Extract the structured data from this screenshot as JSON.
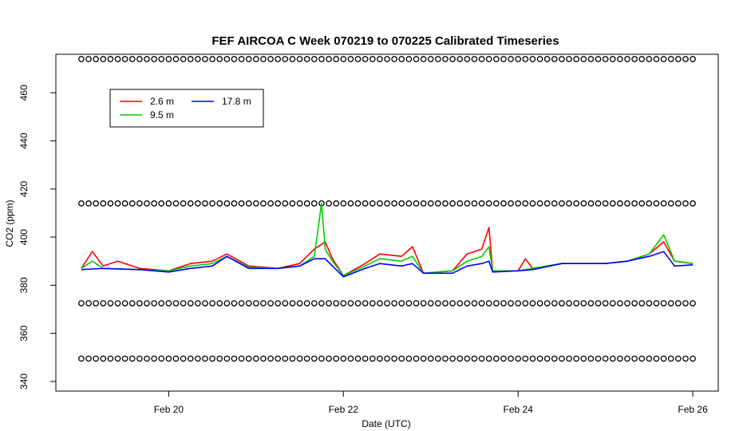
{
  "chart_data": {
    "type": "line",
    "title": "FEF AIRCOA C  Week 070219 to 070225  Calibrated Timeseries",
    "xlabel": "Date (UTC)",
    "ylabel": "CO2 (ppm)",
    "xlim": [
      "2007-02-18T17:00:00Z",
      "2007-02-26T07:00:00Z"
    ],
    "ylim": [
      336,
      476
    ],
    "x_ticks": [
      {
        "label": "Feb 20",
        "value": "2007-02-20T00:00:00Z"
      },
      {
        "label": "Feb 22",
        "value": "2007-02-22T00:00:00Z"
      },
      {
        "label": "Feb 24",
        "value": "2007-02-24T00:00:00Z"
      },
      {
        "label": "Feb 26",
        "value": "2007-02-26T00:00:00Z"
      }
    ],
    "y_ticks": [
      340,
      360,
      380,
      400,
      420,
      440,
      460
    ],
    "grid": false,
    "legend_position": "top-left",
    "series": [
      {
        "name": "2.6 m",
        "color": "#ff0000",
        "points": [
          [
            "2007-02-19T00:00:00Z",
            387.0
          ],
          [
            "2007-02-19T03:00:00Z",
            394.0
          ],
          [
            "2007-02-19T06:00:00Z",
            388.0
          ],
          [
            "2007-02-19T10:00:00Z",
            390.0
          ],
          [
            "2007-02-19T16:00:00Z",
            387.0
          ],
          [
            "2007-02-20T00:00:00Z",
            386.0
          ],
          [
            "2007-02-20T06:00:00Z",
            389.0
          ],
          [
            "2007-02-20T12:00:00Z",
            390.0
          ],
          [
            "2007-02-20T16:00:00Z",
            393.0
          ],
          [
            "2007-02-20T22:00:00Z",
            388.0
          ],
          [
            "2007-02-21T06:00:00Z",
            387.0
          ],
          [
            "2007-02-21T12:00:00Z",
            389.0
          ],
          [
            "2007-02-21T16:00:00Z",
            395.0
          ],
          [
            "2007-02-21T19:00:00Z",
            398.0
          ],
          [
            "2007-02-21T21:00:00Z",
            391.0
          ],
          [
            "2007-02-22T00:00:00Z",
            384.0
          ],
          [
            "2007-02-22T06:00:00Z",
            389.0
          ],
          [
            "2007-02-22T10:00:00Z",
            393.0
          ],
          [
            "2007-02-22T16:00:00Z",
            392.0
          ],
          [
            "2007-02-22T19:00:00Z",
            396.0
          ],
          [
            "2007-02-22T22:00:00Z",
            385.0
          ],
          [
            "2007-02-23T06:00:00Z",
            386.0
          ],
          [
            "2007-02-23T10:00:00Z",
            393.0
          ],
          [
            "2007-02-23T14:00:00Z",
            395.0
          ],
          [
            "2007-02-23T16:00:00Z",
            404.0
          ],
          [
            "2007-02-23T17:00:00Z",
            386.0
          ],
          [
            "2007-02-24T00:00:00Z",
            386.0
          ],
          [
            "2007-02-24T02:00:00Z",
            391.0
          ],
          [
            "2007-02-24T04:00:00Z",
            387.0
          ],
          [
            "2007-02-24T12:00:00Z",
            389.0
          ],
          [
            "2007-02-25T00:00:00Z",
            389.0
          ],
          [
            "2007-02-25T06:00:00Z",
            390.0
          ],
          [
            "2007-02-25T12:00:00Z",
            393.0
          ],
          [
            "2007-02-25T16:00:00Z",
            398.0
          ],
          [
            "2007-02-25T19:00:00Z",
            390.0
          ],
          [
            "2007-02-26T00:00:00Z",
            389.0
          ]
        ]
      },
      {
        "name": "9.5 m",
        "color": "#00cc00",
        "points": [
          [
            "2007-02-19T00:00:00Z",
            387.0
          ],
          [
            "2007-02-19T03:00:00Z",
            390.0
          ],
          [
            "2007-02-19T06:00:00Z",
            387.0
          ],
          [
            "2007-02-19T16:00:00Z",
            386.5
          ],
          [
            "2007-02-20T00:00:00Z",
            386.0
          ],
          [
            "2007-02-20T06:00:00Z",
            388.0
          ],
          [
            "2007-02-20T12:00:00Z",
            389.0
          ],
          [
            "2007-02-20T16:00:00Z",
            392.0
          ],
          [
            "2007-02-20T22:00:00Z",
            387.5
          ],
          [
            "2007-02-21T06:00:00Z",
            387.0
          ],
          [
            "2007-02-21T12:00:00Z",
            388.0
          ],
          [
            "2007-02-21T16:00:00Z",
            392.0
          ],
          [
            "2007-02-21T18:00:00Z",
            414.0
          ],
          [
            "2007-02-21T19:00:00Z",
            395.0
          ],
          [
            "2007-02-21T21:00:00Z",
            390.0
          ],
          [
            "2007-02-22T00:00:00Z",
            384.0
          ],
          [
            "2007-02-22T06:00:00Z",
            388.0
          ],
          [
            "2007-02-22T10:00:00Z",
            391.0
          ],
          [
            "2007-02-22T16:00:00Z",
            390.0
          ],
          [
            "2007-02-22T19:00:00Z",
            392.0
          ],
          [
            "2007-02-22T22:00:00Z",
            385.0
          ],
          [
            "2007-02-23T06:00:00Z",
            386.0
          ],
          [
            "2007-02-23T10:00:00Z",
            390.0
          ],
          [
            "2007-02-23T14:00:00Z",
            392.0
          ],
          [
            "2007-02-23T16:00:00Z",
            396.0
          ],
          [
            "2007-02-23T17:00:00Z",
            386.0
          ],
          [
            "2007-02-24T00:00:00Z",
            386.0
          ],
          [
            "2007-02-24T04:00:00Z",
            387.0
          ],
          [
            "2007-02-24T12:00:00Z",
            389.0
          ],
          [
            "2007-02-25T00:00:00Z",
            389.0
          ],
          [
            "2007-02-25T06:00:00Z",
            390.0
          ],
          [
            "2007-02-25T12:00:00Z",
            393.0
          ],
          [
            "2007-02-25T16:00:00Z",
            401.0
          ],
          [
            "2007-02-25T19:00:00Z",
            390.0
          ],
          [
            "2007-02-26T00:00:00Z",
            389.0
          ]
        ]
      },
      {
        "name": "17.8 m",
        "color": "#0000ff",
        "points": [
          [
            "2007-02-19T00:00:00Z",
            386.5
          ],
          [
            "2007-02-19T06:00:00Z",
            387.0
          ],
          [
            "2007-02-19T16:00:00Z",
            386.5
          ],
          [
            "2007-02-20T00:00:00Z",
            385.5
          ],
          [
            "2007-02-20T06:00:00Z",
            387.0
          ],
          [
            "2007-02-20T12:00:00Z",
            388.0
          ],
          [
            "2007-02-20T16:00:00Z",
            392.0
          ],
          [
            "2007-02-20T22:00:00Z",
            387.0
          ],
          [
            "2007-02-21T06:00:00Z",
            387.0
          ],
          [
            "2007-02-21T12:00:00Z",
            388.0
          ],
          [
            "2007-02-21T16:00:00Z",
            391.0
          ],
          [
            "2007-02-21T19:00:00Z",
            391.0
          ],
          [
            "2007-02-21T21:00:00Z",
            388.0
          ],
          [
            "2007-02-22T00:00:00Z",
            383.5
          ],
          [
            "2007-02-22T06:00:00Z",
            387.0
          ],
          [
            "2007-02-22T10:00:00Z",
            389.0
          ],
          [
            "2007-02-22T16:00:00Z",
            388.0
          ],
          [
            "2007-02-22T19:00:00Z",
            389.0
          ],
          [
            "2007-02-22T22:00:00Z",
            385.0
          ],
          [
            "2007-02-23T06:00:00Z",
            385.0
          ],
          [
            "2007-02-23T10:00:00Z",
            388.0
          ],
          [
            "2007-02-23T14:00:00Z",
            389.0
          ],
          [
            "2007-02-23T16:00:00Z",
            390.0
          ],
          [
            "2007-02-23T17:00:00Z",
            385.5
          ],
          [
            "2007-02-24T00:00:00Z",
            386.0
          ],
          [
            "2007-02-24T04:00:00Z",
            386.5
          ],
          [
            "2007-02-24T12:00:00Z",
            389.0
          ],
          [
            "2007-02-25T00:00:00Z",
            389.0
          ],
          [
            "2007-02-25T06:00:00Z",
            390.0
          ],
          [
            "2007-02-25T12:00:00Z",
            392.0
          ],
          [
            "2007-02-25T16:00:00Z",
            394.0
          ],
          [
            "2007-02-25T19:00:00Z",
            388.0
          ],
          [
            "2007-02-26T00:00:00Z",
            388.5
          ]
        ]
      }
    ],
    "reference_markers": {
      "marker": "open-circle",
      "color": "#000000",
      "x_start": "2007-02-19T00:00:00Z",
      "x_end": "2007-02-26T00:00:00Z",
      "interval_hours": 2,
      "levels": [
        349.5,
        372.5,
        414.0,
        474.0
      ]
    }
  }
}
